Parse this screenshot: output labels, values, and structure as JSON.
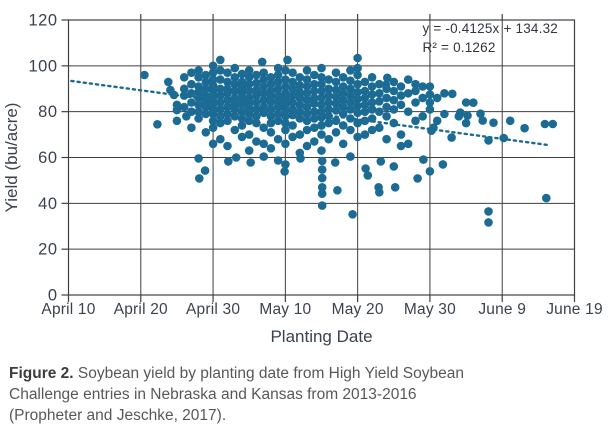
{
  "chart_data": {
    "type": "scatter",
    "title": "",
    "xlabel": "Planting Date",
    "ylabel": "Yield (bu/acre)",
    "x_tick_labels": [
      "April 10",
      "April 20",
      "April 30",
      "May 10",
      "May 20",
      "May 30",
      "June 9",
      "June 19"
    ],
    "x_unit_note": "x values are days after April 10 (0 = April 10, 70 = June 19)",
    "xlim": [
      0,
      70
    ],
    "y_tick_values": [
      0,
      20,
      40,
      60,
      80,
      100,
      120
    ],
    "ylim": [
      0,
      120
    ],
    "grid": true,
    "legend": "none",
    "point_color": "#1b6b95",
    "grid_color": "#3f3f3f",
    "axis_text_color": "#3a424b",
    "trendline": {
      "equation": "y = -0.4125x + 134.32",
      "r_squared": "R² = 0.1262",
      "style": "dotted",
      "x1": 0.4,
      "y1": 93.4,
      "x2": 66.7,
      "y2": 65.3
    },
    "points": [
      [
        10.5,
        96
      ],
      [
        12.3,
        74.5
      ],
      [
        13.8,
        93
      ],
      [
        14.1,
        89.4
      ],
      [
        14.6,
        87.3
      ],
      [
        15,
        83
      ],
      [
        15,
        80.7
      ],
      [
        15,
        76
      ],
      [
        16,
        95
      ],
      [
        16,
        90
      ],
      [
        16,
        87
      ],
      [
        16,
        82
      ],
      [
        16.3,
        78
      ],
      [
        17,
        97
      ],
      [
        17,
        92
      ],
      [
        17,
        88
      ],
      [
        17,
        84
      ],
      [
        17,
        80
      ],
      [
        17,
        73
      ],
      [
        18,
        98
      ],
      [
        18,
        95
      ],
      [
        18,
        91
      ],
      [
        18,
        88.5
      ],
      [
        18,
        86
      ],
      [
        18,
        83
      ],
      [
        18,
        80
      ],
      [
        18,
        77
      ],
      [
        18,
        59.6
      ],
      [
        18.1,
        50.9
      ],
      [
        19,
        96
      ],
      [
        19,
        93
      ],
      [
        19,
        90
      ],
      [
        19,
        87
      ],
      [
        19,
        84.5
      ],
      [
        19,
        82
      ],
      [
        19,
        79
      ],
      [
        19,
        71
      ],
      [
        18.9,
        54.3
      ],
      [
        20,
        100
      ],
      [
        20,
        97
      ],
      [
        20,
        94
      ],
      [
        20,
        91.5
      ],
      [
        20,
        89
      ],
      [
        20,
        87
      ],
      [
        20,
        85
      ],
      [
        20,
        83
      ],
      [
        20,
        81
      ],
      [
        20,
        79
      ],
      [
        20,
        76
      ],
      [
        20,
        73
      ],
      [
        20,
        66
      ],
      [
        21,
        102.6
      ],
      [
        21,
        98
      ],
      [
        21,
        94
      ],
      [
        21,
        90
      ],
      [
        21,
        87
      ],
      [
        21,
        84
      ],
      [
        21,
        81
      ],
      [
        21,
        78
      ],
      [
        21,
        75
      ],
      [
        21,
        68
      ],
      [
        22,
        97
      ],
      [
        22,
        93
      ],
      [
        22,
        90
      ],
      [
        22,
        88
      ],
      [
        22,
        85
      ],
      [
        22,
        82
      ],
      [
        22,
        79
      ],
      [
        22,
        76
      ],
      [
        22,
        65
      ],
      [
        22.1,
        58.3
      ],
      [
        23,
        99
      ],
      [
        23,
        95
      ],
      [
        23,
        92
      ],
      [
        23,
        89
      ],
      [
        23,
        86
      ],
      [
        23,
        83.5
      ],
      [
        23,
        81
      ],
      [
        23,
        78
      ],
      [
        23,
        72
      ],
      [
        23.2,
        60
      ],
      [
        24,
        96.5
      ],
      [
        24,
        93
      ],
      [
        24,
        90.5
      ],
      [
        24,
        88
      ],
      [
        24,
        85.5
      ],
      [
        24,
        83
      ],
      [
        24,
        80
      ],
      [
        24,
        77
      ],
      [
        24,
        74
      ],
      [
        24,
        69
      ],
      [
        25,
        98
      ],
      [
        25,
        95
      ],
      [
        25,
        92
      ],
      [
        25,
        89
      ],
      [
        25,
        86
      ],
      [
        25,
        84
      ],
      [
        25,
        81.5
      ],
      [
        25,
        79
      ],
      [
        25,
        76
      ],
      [
        25,
        70
      ],
      [
        25,
        63
      ],
      [
        25.2,
        57.8
      ],
      [
        26,
        96
      ],
      [
        26,
        92.5
      ],
      [
        26,
        89.5
      ],
      [
        26,
        87
      ],
      [
        26,
        84
      ],
      [
        26,
        81
      ],
      [
        26,
        78
      ],
      [
        26,
        75
      ],
      [
        26,
        67
      ],
      [
        26.8,
        101.7
      ],
      [
        27,
        97
      ],
      [
        27,
        94
      ],
      [
        27,
        91
      ],
      [
        27,
        88
      ],
      [
        27,
        85
      ],
      [
        27,
        82
      ],
      [
        27,
        79.5
      ],
      [
        27,
        73
      ],
      [
        27,
        66
      ],
      [
        27,
        60.4
      ],
      [
        28,
        95
      ],
      [
        28,
        92
      ],
      [
        28,
        89
      ],
      [
        28,
        86.5
      ],
      [
        28,
        84
      ],
      [
        28,
        81
      ],
      [
        28,
        78
      ],
      [
        28,
        75
      ],
      [
        28,
        71
      ],
      [
        28,
        64
      ],
      [
        29,
        99
      ],
      [
        29,
        96
      ],
      [
        29,
        93
      ],
      [
        29,
        90
      ],
      [
        29,
        87
      ],
      [
        29,
        84.5
      ],
      [
        29,
        82
      ],
      [
        29,
        79
      ],
      [
        29,
        76
      ],
      [
        29,
        68
      ],
      [
        29,
        58.7
      ],
      [
        29.9,
        53.9
      ],
      [
        30.3,
        102.6
      ],
      [
        30,
        98
      ],
      [
        30,
        94
      ],
      [
        30,
        91
      ],
      [
        30,
        88
      ],
      [
        30,
        85.5
      ],
      [
        30,
        83
      ],
      [
        30,
        80.5
      ],
      [
        30,
        78
      ],
      [
        30,
        75
      ],
      [
        30,
        72
      ],
      [
        30,
        66
      ],
      [
        30,
        57
      ],
      [
        31,
        97
      ],
      [
        31,
        93
      ],
      [
        31,
        90
      ],
      [
        31,
        87
      ],
      [
        31,
        84
      ],
      [
        31,
        81
      ],
      [
        31,
        78.5
      ],
      [
        31,
        74
      ],
      [
        31,
        69
      ],
      [
        32,
        95
      ],
      [
        32,
        91.5
      ],
      [
        32,
        88.5
      ],
      [
        32,
        86
      ],
      [
        32,
        83
      ],
      [
        32,
        80
      ],
      [
        32,
        77
      ],
      [
        32,
        70
      ],
      [
        32,
        62
      ],
      [
        32.1,
        59.6
      ],
      [
        33,
        98
      ],
      [
        33,
        94
      ],
      [
        33,
        91
      ],
      [
        33,
        88
      ],
      [
        33,
        85
      ],
      [
        33,
        82
      ],
      [
        33,
        79
      ],
      [
        33,
        76
      ],
      [
        33,
        72
      ],
      [
        33,
        65
      ],
      [
        34,
        96
      ],
      [
        34,
        92
      ],
      [
        34,
        89
      ],
      [
        34,
        86
      ],
      [
        34,
        83.5
      ],
      [
        34,
        80
      ],
      [
        34,
        77
      ],
      [
        34,
        73
      ],
      [
        34,
        67
      ],
      [
        35,
        99
      ],
      [
        35,
        95
      ],
      [
        35,
        92
      ],
      [
        35,
        89
      ],
      [
        35,
        86
      ],
      [
        35,
        83
      ],
      [
        35,
        80
      ],
      [
        35,
        77.5
      ],
      [
        35,
        74
      ],
      [
        35,
        70
      ],
      [
        35,
        63
      ],
      [
        35.1,
        58.5
      ],
      [
        35.1,
        54.7
      ],
      [
        35.1,
        51
      ],
      [
        35.1,
        47
      ],
      [
        35.1,
        44.2
      ],
      [
        35.1,
        39
      ],
      [
        36,
        94
      ],
      [
        36,
        90
      ],
      [
        36,
        87
      ],
      [
        36,
        84
      ],
      [
        36,
        81
      ],
      [
        36,
        78
      ],
      [
        36,
        75
      ],
      [
        36,
        68
      ],
      [
        37,
        97
      ],
      [
        37,
        93
      ],
      [
        37,
        89.5
      ],
      [
        37,
        86.5
      ],
      [
        37,
        83.5
      ],
      [
        37,
        80.5
      ],
      [
        37,
        76
      ],
      [
        37,
        71
      ],
      [
        36.9,
        57.8
      ],
      [
        37.2,
        45.7
      ],
      [
        38,
        95
      ],
      [
        38,
        91
      ],
      [
        38,
        88
      ],
      [
        38,
        85
      ],
      [
        38,
        82
      ],
      [
        38,
        79
      ],
      [
        38,
        74
      ],
      [
        38,
        66
      ],
      [
        39,
        98
      ],
      [
        39,
        93.5
      ],
      [
        39,
        90
      ],
      [
        39,
        87
      ],
      [
        39,
        84
      ],
      [
        39,
        81
      ],
      [
        39,
        77
      ],
      [
        39,
        72
      ],
      [
        39,
        60.4
      ],
      [
        39.3,
        35.2
      ],
      [
        40,
        103.4
      ],
      [
        40,
        99
      ],
      [
        40,
        96
      ],
      [
        40,
        92
      ],
      [
        40,
        88.5
      ],
      [
        40,
        85.5
      ],
      [
        40,
        82.5
      ],
      [
        40,
        79.5
      ],
      [
        40,
        75
      ],
      [
        40,
        69
      ],
      [
        41,
        93
      ],
      [
        41,
        89
      ],
      [
        41,
        86
      ],
      [
        41,
        83
      ],
      [
        41,
        80
      ],
      [
        41,
        76
      ],
      [
        41,
        70
      ],
      [
        41.1,
        55.2
      ],
      [
        41.4,
        52.2
      ],
      [
        42,
        95
      ],
      [
        42,
        91
      ],
      [
        42,
        87.5
      ],
      [
        42,
        84
      ],
      [
        42,
        81
      ],
      [
        42,
        77
      ],
      [
        42,
        72
      ],
      [
        43,
        92
      ],
      [
        43,
        88
      ],
      [
        43,
        84.5
      ],
      [
        43,
        80
      ],
      [
        43,
        73
      ],
      [
        43.2,
        58.3
      ],
      [
        42.9,
        47
      ],
      [
        43,
        44.8
      ],
      [
        43.9,
        91.7
      ],
      [
        44,
        90
      ],
      [
        44,
        86
      ],
      [
        44,
        82
      ],
      [
        44,
        78
      ],
      [
        44,
        68
      ],
      [
        44.1,
        94.8
      ],
      [
        45,
        93
      ],
      [
        45,
        89
      ],
      [
        45,
        85
      ],
      [
        45,
        81
      ],
      [
        45,
        75
      ],
      [
        45,
        56.1
      ],
      [
        45.2,
        47
      ],
      [
        46,
        91
      ],
      [
        46,
        87
      ],
      [
        46,
        83
      ],
      [
        46,
        70
      ],
      [
        46,
        65
      ],
      [
        47,
        94
      ],
      [
        47,
        88
      ],
      [
        47,
        80
      ],
      [
        47,
        66
      ],
      [
        48,
        92
      ],
      [
        48,
        89
      ],
      [
        48,
        84
      ],
      [
        48,
        76
      ],
      [
        48.3,
        50.9
      ],
      [
        49,
        91
      ],
      [
        49,
        86
      ],
      [
        49,
        78
      ],
      [
        49.1,
        59.1
      ],
      [
        50,
        91
      ],
      [
        50,
        87.5
      ],
      [
        50,
        84
      ],
      [
        50,
        81
      ],
      [
        50.5,
        73
      ],
      [
        50.2,
        71.7
      ],
      [
        50,
        54
      ],
      [
        51,
        86
      ],
      [
        51,
        76
      ],
      [
        51.8,
        57
      ],
      [
        52,
        88
      ],
      [
        52,
        79
      ],
      [
        53.1,
        87.8
      ],
      [
        53,
        68.7
      ],
      [
        54.2,
        79.6
      ],
      [
        54,
        78
      ],
      [
        55,
        84
      ],
      [
        55.2,
        78.3
      ],
      [
        55,
        75
      ],
      [
        56,
        83.9
      ],
      [
        57,
        79.1
      ],
      [
        57.3,
        76.1
      ],
      [
        58.8,
        75.2
      ],
      [
        58.1,
        67.4
      ],
      [
        58.1,
        36.5
      ],
      [
        58.1,
        31.7
      ],
      [
        60.2,
        68.5
      ],
      [
        61.1,
        76
      ],
      [
        63.1,
        72.8
      ],
      [
        65.9,
        74.6
      ],
      [
        66.1,
        42.3
      ],
      [
        67,
        74.6
      ]
    ]
  },
  "equation": {
    "line1": "y = -0.4125x + 134.32",
    "line2": "R² = 0.1262"
  },
  "caption": {
    "label": "Figure 2.",
    "line1_rest": "Soybean yield by planting date from High Yield Soybean",
    "line2": "Challenge entries in Nebraska and Kansas from 2013-2016",
    "line3": "(Propheter and Jeschke, 2017)."
  }
}
